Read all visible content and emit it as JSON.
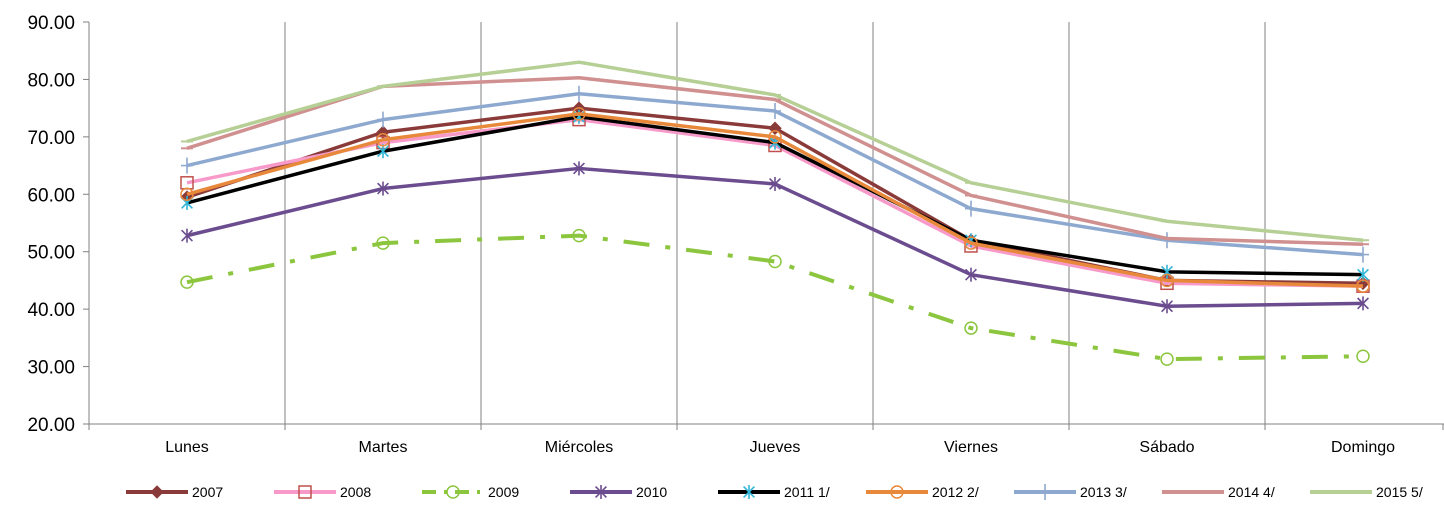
{
  "chart_data": {
    "type": "line",
    "categories": [
      "Lunes",
      "Martes",
      "Miércoles",
      "Jueves",
      "Viernes",
      "Sábado",
      "Domingo"
    ],
    "ylim": [
      20,
      90
    ],
    "yticks": [
      "20.00",
      "30.00",
      "40.00",
      "50.00",
      "60.00",
      "70.00",
      "80.00",
      "90.00"
    ],
    "grid": "vertical lines between categories",
    "legend_position": "bottom",
    "series": [
      {
        "name": "2007",
        "color": "#8B3A3A",
        "marker": "diamond",
        "dash": "solid",
        "values": [
          59.5,
          70.8,
          75.0,
          71.5,
          52.0,
          45.0,
          44.5
        ]
      },
      {
        "name": "2008",
        "color": "#F79AC9",
        "marker": "square",
        "dash": "solid",
        "values": [
          62.0,
          69.0,
          73.0,
          68.5,
          51.0,
          44.5,
          44.0
        ]
      },
      {
        "name": "2009",
        "color": "#8CC63F",
        "marker": "circle",
        "dash": "dashdot",
        "values": [
          44.7,
          51.5,
          52.8,
          48.3,
          36.7,
          31.3,
          31.8
        ]
      },
      {
        "name": "2010",
        "color": "#6B4C8E",
        "marker": "star",
        "dash": "solid",
        "values": [
          52.8,
          61.0,
          64.5,
          61.8,
          46.0,
          40.5,
          41.0
        ]
      },
      {
        "name": "2011 1/",
        "color": "#000000",
        "marker": "asterisk",
        "dash": "solid",
        "values": [
          58.5,
          67.5,
          73.5,
          69.0,
          52.0,
          46.5,
          46.0
        ]
      },
      {
        "name": "2012 2/",
        "color": "#E8883A",
        "marker": "circle",
        "dash": "solid",
        "values": [
          60.0,
          69.5,
          74.0,
          70.0,
          51.5,
          45.0,
          44.0
        ]
      },
      {
        "name": "2013 3/",
        "color": "#8EA9CF",
        "marker": "plus",
        "dash": "solid",
        "values": [
          65.0,
          73.0,
          77.5,
          74.5,
          57.5,
          52.0,
          49.5
        ]
      },
      {
        "name": "2014 4/",
        "color": "#D09090",
        "marker": "line",
        "dash": "solid",
        "values": [
          68.0,
          78.8,
          80.3,
          76.5,
          59.8,
          52.3,
          51.3
        ]
      },
      {
        "name": "2015 5/",
        "color": "#B5CF95",
        "marker": "line",
        "dash": "solid",
        "values": [
          69.2,
          78.8,
          83.0,
          77.3,
          62.0,
          55.3,
          52.0
        ]
      }
    ]
  }
}
